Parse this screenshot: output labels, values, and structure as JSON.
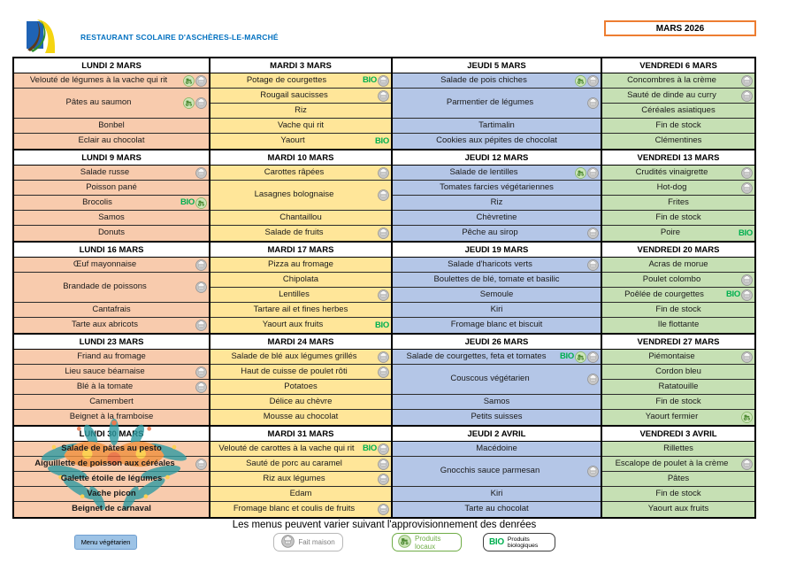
{
  "header": {
    "title": "RESTAURANT SCOLAIRE D'ASCHÈRES-LE-MARCHÉ",
    "month_label": "MARS 2026"
  },
  "badges": {
    "bio": "BIO"
  },
  "colors": {
    "title_blue": "#0070C0",
    "month_box_border": "#ED7D31",
    "bio_green": "#00B050",
    "local_green": "#70AD47",
    "homemade_grey": "#7F7F7F",
    "vegetarian_blue": "#9DC3E6",
    "day_fills": {
      "monday": "#F8CBAD",
      "tuesday": "#FFE699",
      "thursday": "#B4C6E7",
      "friday": "#C6E0B4"
    }
  },
  "weeks": [
    {
      "days": [
        {
          "header": "LUNDI 2 MARS",
          "color": "monday",
          "items": [
            {
              "label": "Velouté de légumes à la vache qui rit",
              "icons": [
                "local",
                "homemade"
              ],
              "rows": 1
            },
            {
              "label": "Pâtes au saumon",
              "icons": [
                "local",
                "homemade"
              ],
              "rows": 2
            },
            {
              "label": "Bonbel",
              "icons": [],
              "rows": 1
            },
            {
              "label": "Eclair au chocolat",
              "icons": [],
              "rows": 1
            }
          ]
        },
        {
          "header": "MARDI 3 MARS",
          "color": "tuesday",
          "items": [
            {
              "label": "Potage de courgettes",
              "icons": [
                "bio",
                "homemade"
              ],
              "rows": 1
            },
            {
              "label": "Rougail saucisses",
              "icons": [
                "homemade"
              ],
              "rows": 1
            },
            {
              "label": "Riz",
              "icons": [],
              "rows": 1
            },
            {
              "label": "Vache qui rit",
              "icons": [],
              "rows": 1
            },
            {
              "label": "Yaourt",
              "icons": [
                "bio"
              ],
              "rows": 1
            }
          ]
        },
        {
          "header": "JEUDI 5 MARS",
          "color": "thursday",
          "items": [
            {
              "label": "Salade de pois chiches",
              "icons": [
                "local",
                "homemade"
              ],
              "rows": 1
            },
            {
              "label": "Parmentier de légumes",
              "icons": [
                "homemade"
              ],
              "rows": 2
            },
            {
              "label": "Tartimalin",
              "icons": [],
              "rows": 1
            },
            {
              "label": "Cookies aux pépites de chocolat",
              "icons": [],
              "rows": 1
            }
          ]
        },
        {
          "header": "VENDREDI 6 MARS",
          "color": "friday",
          "items": [
            {
              "label": "Concombres à la crème",
              "icons": [
                "homemade"
              ],
              "rows": 1
            },
            {
              "label": "Sauté de dinde au curry",
              "icons": [
                "homemade"
              ],
              "rows": 1
            },
            {
              "label": "Céréales asiatiques",
              "icons": [],
              "rows": 1
            },
            {
              "label": "Fin de stock",
              "icons": [],
              "rows": 1
            },
            {
              "label": "Clémentines",
              "icons": [],
              "rows": 1
            }
          ]
        }
      ]
    },
    {
      "days": [
        {
          "header": "LUNDI 9 MARS",
          "color": "monday",
          "items": [
            {
              "label": "Salade russe",
              "icons": [
                "homemade"
              ],
              "rows": 1
            },
            {
              "label": "Poisson pané",
              "icons": [],
              "rows": 1
            },
            {
              "label": "Brocolis",
              "icons": [
                "bio",
                "local"
              ],
              "rows": 1
            },
            {
              "label": "Samos",
              "icons": [],
              "rows": 1
            },
            {
              "label": "Donuts",
              "icons": [],
              "rows": 1
            }
          ]
        },
        {
          "header": "MARDI 10 MARS",
          "color": "tuesday",
          "items": [
            {
              "label": "Carottes râpées",
              "icons": [
                "homemade"
              ],
              "rows": 1
            },
            {
              "label": "Lasagnes bolognaise",
              "icons": [
                "homemade"
              ],
              "rows": 2
            },
            {
              "label": "Chantaillou",
              "icons": [],
              "rows": 1
            },
            {
              "label": "Salade de fruits",
              "icons": [
                "homemade"
              ],
              "rows": 1
            }
          ]
        },
        {
          "header": "JEUDI 12 MARS",
          "color": "thursday",
          "items": [
            {
              "label": "Salade de lentilles",
              "icons": [
                "local",
                "homemade"
              ],
              "rows": 1
            },
            {
              "label": "Tomates farcies végétariennes",
              "icons": [],
              "rows": 1
            },
            {
              "label": "Riz",
              "icons": [],
              "rows": 1
            },
            {
              "label": "Chèvretine",
              "icons": [],
              "rows": 1
            },
            {
              "label": "Pêche au sirop",
              "icons": [
                "homemade"
              ],
              "rows": 1
            }
          ]
        },
        {
          "header": "VENDREDI 13 MARS",
          "color": "friday",
          "items": [
            {
              "label": "Crudités vinaigrette",
              "icons": [
                "homemade"
              ],
              "rows": 1
            },
            {
              "label": "Hot-dog",
              "icons": [
                "homemade"
              ],
              "rows": 1
            },
            {
              "label": "Frites",
              "icons": [],
              "rows": 1
            },
            {
              "label": "Fin de stock",
              "icons": [],
              "rows": 1
            },
            {
              "label": "Poire",
              "icons": [
                "bio"
              ],
              "rows": 1
            }
          ]
        }
      ]
    },
    {
      "days": [
        {
          "header": "LUNDI 16 MARS",
          "color": "monday",
          "items": [
            {
              "label": "Œuf mayonnaise",
              "icons": [
                "homemade"
              ],
              "rows": 1
            },
            {
              "label": "Brandade de poissons",
              "icons": [
                "homemade"
              ],
              "rows": 2
            },
            {
              "label": "Cantafrais",
              "icons": [],
              "rows": 1
            },
            {
              "label": "Tarte aux abricots",
              "icons": [
                "homemade"
              ],
              "rows": 1
            }
          ]
        },
        {
          "header": "MARDI 17 MARS",
          "color": "tuesday",
          "items": [
            {
              "label": "Pizza au fromage",
              "icons": [],
              "rows": 1
            },
            {
              "label": "Chipolata",
              "icons": [],
              "rows": 1
            },
            {
              "label": "Lentilles",
              "icons": [
                "homemade"
              ],
              "rows": 1
            },
            {
              "label": "Tartare ail et fines herbes",
              "icons": [],
              "rows": 1
            },
            {
              "label": "Yaourt aux fruits",
              "icons": [
                "bio"
              ],
              "rows": 1
            }
          ]
        },
        {
          "header": "JEUDI 19 MARS",
          "color": "thursday",
          "items": [
            {
              "label": "Salade d'haricots verts",
              "icons": [
                "homemade"
              ],
              "rows": 1
            },
            {
              "label": "Boulettes de blé, tomate et basilic",
              "icons": [],
              "rows": 1
            },
            {
              "label": "Semoule",
              "icons": [],
              "rows": 1
            },
            {
              "label": "Kiri",
              "icons": [],
              "rows": 1
            },
            {
              "label": "Fromage blanc et biscuit",
              "icons": [],
              "rows": 1
            }
          ]
        },
        {
          "header": "VENDREDI 20 MARS",
          "color": "friday",
          "items": [
            {
              "label": "Acras de morue",
              "icons": [],
              "rows": 1
            },
            {
              "label": "Poulet colombo",
              "icons": [
                "homemade"
              ],
              "rows": 1
            },
            {
              "label": "Poêlée de courgettes",
              "icons": [
                "bio",
                "homemade"
              ],
              "rows": 1
            },
            {
              "label": "Fin de stock",
              "icons": [],
              "rows": 1
            },
            {
              "label": "Ile flottante",
              "icons": [],
              "rows": 1
            }
          ]
        }
      ]
    },
    {
      "days": [
        {
          "header": "LUNDI 23 MARS",
          "color": "monday",
          "items": [
            {
              "label": "Friand au fromage",
              "icons": [],
              "rows": 1
            },
            {
              "label": "Lieu sauce béarnaise",
              "icons": [
                "homemade"
              ],
              "rows": 1
            },
            {
              "label": "Blé à la tomate",
              "icons": [
                "homemade"
              ],
              "rows": 1
            },
            {
              "label": "Camembert",
              "icons": [],
              "rows": 1
            },
            {
              "label": "Beignet à la framboise",
              "icons": [],
              "rows": 1
            }
          ]
        },
        {
          "header": "MARDI 24 MARS",
          "color": "tuesday",
          "items": [
            {
              "label": "Salade de blé aux légumes grillés",
              "icons": [
                "homemade"
              ],
              "rows": 1
            },
            {
              "label": "Haut de cuisse de poulet rôti",
              "icons": [
                "homemade"
              ],
              "rows": 1
            },
            {
              "label": "Potatoes",
              "icons": [],
              "rows": 1
            },
            {
              "label": "Délice au chèvre",
              "icons": [],
              "rows": 1
            },
            {
              "label": "Mousse au chocolat",
              "icons": [],
              "rows": 1
            }
          ]
        },
        {
          "header": "JEUDI 26 MARS",
          "color": "thursday",
          "items": [
            {
              "label": "Salade de courgettes, feta et tomates",
              "icons": [
                "bio",
                "local",
                "homemade"
              ],
              "rows": 1
            },
            {
              "label": "Couscous végétarien",
              "icons": [
                "homemade"
              ],
              "rows": 2
            },
            {
              "label": "Samos",
              "icons": [],
              "rows": 1
            },
            {
              "label": "Petits suisses",
              "icons": [],
              "rows": 1
            }
          ]
        },
        {
          "header": "VENDREDI 27 MARS",
          "color": "friday",
          "items": [
            {
              "label": "Piémontaise",
              "icons": [
                "homemade"
              ],
              "rows": 1
            },
            {
              "label": "Cordon bleu",
              "icons": [],
              "rows": 1
            },
            {
              "label": "Ratatouille",
              "icons": [],
              "rows": 1
            },
            {
              "label": "Fin de stock",
              "icons": [],
              "rows": 1
            },
            {
              "label": "Yaourt fermier",
              "icons": [
                "local"
              ],
              "rows": 1
            }
          ]
        }
      ]
    },
    {
      "days": [
        {
          "header": "LUNDI 30 MARS",
          "color": "monday",
          "bold": true,
          "items": [
            {
              "label": "Salade de pâtes au pesto",
              "icons": [],
              "rows": 1
            },
            {
              "label": "Aiguillette de poisson aux céréales",
              "icons": [
                "homemade"
              ],
              "rows": 1
            },
            {
              "label": "Galette étoile de légumes",
              "icons": [],
              "rows": 1
            },
            {
              "label": "Vache picon",
              "icons": [],
              "rows": 1
            },
            {
              "label": "Beignet de carnaval",
              "icons": [],
              "rows": 1
            }
          ]
        },
        {
          "header": "MARDI 31 MARS",
          "color": "tuesday",
          "items": [
            {
              "label": "Velouté de carottes à la vache qui rit",
              "icons": [
                "bio",
                "homemade"
              ],
              "rows": 1
            },
            {
              "label": "Sauté de porc au caramel",
              "icons": [
                "homemade"
              ],
              "rows": 1
            },
            {
              "label": "Riz aux légumes",
              "icons": [
                "homemade"
              ],
              "rows": 1
            },
            {
              "label": "Edam",
              "icons": [],
              "rows": 1
            },
            {
              "label": "Fromage blanc et coulis de fruits",
              "icons": [
                "homemade"
              ],
              "rows": 1
            }
          ]
        },
        {
          "header": "JEUDI 2 AVRIL",
          "color": "thursday",
          "items": [
            {
              "label": "Macédoine",
              "icons": [],
              "rows": 1
            },
            {
              "label": "Gnocchis sauce parmesan",
              "icons": [
                "homemade"
              ],
              "rows": 2
            },
            {
              "label": "Kiri",
              "icons": [],
              "rows": 1
            },
            {
              "label": "Tarte au chocolat",
              "icons": [],
              "rows": 1
            }
          ]
        },
        {
          "header": "VENDREDI 3 AVRIL",
          "color": "friday",
          "items": [
            {
              "label": "Rillettes",
              "icons": [],
              "rows": 1
            },
            {
              "label": "Escalope de poulet à la crème",
              "icons": [
                "homemade"
              ],
              "rows": 1
            },
            {
              "label": "Pâtes",
              "icons": [],
              "rows": 1
            },
            {
              "label": "Fin de stock",
              "icons": [],
              "rows": 1
            },
            {
              "label": "Yaourt aux fruits",
              "icons": [],
              "rows": 1
            }
          ]
        }
      ]
    }
  ],
  "footer": {
    "note": "Les menus peuvent varier suivant l'approvisionnement des denrées",
    "legend": [
      {
        "label": "Menu végétarien",
        "type": "vegetarian"
      },
      {
        "label": "Fait maison",
        "type": "homemade"
      },
      {
        "label": "Produits locaux",
        "type": "local"
      },
      {
        "label": "Produits biologiques",
        "type": "bio"
      }
    ]
  }
}
